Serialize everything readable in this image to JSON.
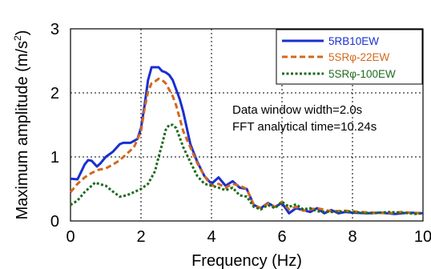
{
  "chart_data": {
    "type": "line",
    "xlabel": "Frequency (Hz)",
    "ylabel": "Maximum amplitude (m/s",
    "ylabel_sup": "2",
    "ylabel_close": ")",
    "xlim": [
      0,
      10
    ],
    "ylim": [
      0,
      3
    ],
    "xticks": [
      "0",
      "2",
      "4",
      "6",
      "8",
      "10"
    ],
    "yticks": [
      "0",
      "1",
      "2",
      "3"
    ],
    "grid": "dotted",
    "legend_position": "top-right",
    "annotations": [
      "Data window width=2.0s",
      "FFT analytical time=10.24s"
    ],
    "series": [
      {
        "name": "5RB10EW",
        "color": "#1a2fd0",
        "style": "solid",
        "x": [
          0.0,
          0.2,
          0.4,
          0.5,
          0.6,
          0.75,
          0.85,
          1.0,
          1.2,
          1.4,
          1.5,
          1.7,
          1.9,
          2.0,
          2.1,
          2.2,
          2.3,
          2.4,
          2.5,
          2.6,
          2.7,
          2.8,
          2.9,
          3.0,
          3.1,
          3.2,
          3.3,
          3.4,
          3.6,
          3.8,
          4.0,
          4.2,
          4.4,
          4.6,
          4.8,
          5.0,
          5.2,
          5.4,
          5.6,
          5.8,
          6.0,
          6.2,
          6.4,
          6.6,
          6.8,
          7.0,
          7.2,
          7.4,
          7.6,
          7.8,
          8.0,
          8.4,
          8.8,
          9.2,
          9.6,
          10.0
        ],
        "values": [
          0.66,
          0.65,
          0.88,
          0.95,
          0.94,
          0.85,
          0.9,
          1.0,
          1.08,
          1.2,
          1.22,
          1.22,
          1.28,
          1.45,
          1.8,
          2.2,
          2.4,
          2.4,
          2.4,
          2.34,
          2.32,
          2.28,
          2.2,
          2.05,
          1.9,
          1.7,
          1.45,
          1.2,
          0.92,
          0.7,
          0.58,
          0.68,
          0.55,
          0.62,
          0.52,
          0.5,
          0.25,
          0.2,
          0.28,
          0.22,
          0.28,
          0.12,
          0.2,
          0.17,
          0.14,
          0.2,
          0.12,
          0.17,
          0.12,
          0.14,
          0.13,
          0.12,
          0.13,
          0.11,
          0.13,
          0.12
        ]
      },
      {
        "name": "5SRφ-22EW",
        "color": "#d2691e",
        "style": "dashed",
        "x": [
          0.0,
          0.2,
          0.4,
          0.6,
          0.8,
          1.0,
          1.2,
          1.4,
          1.6,
          1.8,
          2.0,
          2.1,
          2.2,
          2.3,
          2.4,
          2.5,
          2.6,
          2.7,
          2.8,
          2.9,
          3.0,
          3.1,
          3.2,
          3.4,
          3.6,
          3.8,
          4.0,
          4.2,
          4.4,
          4.6,
          4.8,
          5.0,
          5.2,
          5.4,
          5.6,
          5.8,
          6.0,
          6.2,
          6.4,
          6.6,
          6.8,
          7.0,
          7.4,
          7.8,
          8.2,
          8.6,
          9.0,
          9.4,
          9.8,
          10.0
        ],
        "values": [
          0.45,
          0.58,
          0.68,
          0.75,
          0.8,
          0.82,
          0.88,
          0.95,
          1.05,
          1.15,
          1.4,
          1.75,
          2.02,
          2.15,
          2.18,
          2.22,
          2.2,
          2.15,
          2.05,
          1.95,
          1.8,
          1.6,
          1.4,
          1.15,
          0.9,
          0.7,
          0.55,
          0.58,
          0.52,
          0.58,
          0.55,
          0.5,
          0.25,
          0.2,
          0.27,
          0.22,
          0.3,
          0.18,
          0.22,
          0.16,
          0.18,
          0.2,
          0.15,
          0.16,
          0.14,
          0.13,
          0.12,
          0.14,
          0.12,
          0.13
        ]
      },
      {
        "name": "5SRφ-100EW",
        "color": "#1f6b1f",
        "style": "dotted",
        "x": [
          0.0,
          0.2,
          0.4,
          0.6,
          0.7,
          0.8,
          1.0,
          1.2,
          1.4,
          1.6,
          1.8,
          2.0,
          2.2,
          2.4,
          2.5,
          2.6,
          2.7,
          2.8,
          2.9,
          3.0,
          3.1,
          3.2,
          3.4,
          3.6,
          3.8,
          4.0,
          4.2,
          4.4,
          4.6,
          4.8,
          5.0,
          5.2,
          5.4,
          5.6,
          5.8,
          6.0,
          6.2,
          6.4,
          6.6,
          6.8,
          7.0,
          7.4,
          7.8,
          8.2,
          8.6,
          9.0,
          9.4,
          9.8,
          10.0
        ],
        "values": [
          0.25,
          0.32,
          0.45,
          0.55,
          0.6,
          0.58,
          0.55,
          0.46,
          0.38,
          0.4,
          0.45,
          0.5,
          0.58,
          0.78,
          1.0,
          1.2,
          1.42,
          1.5,
          1.5,
          1.45,
          1.3,
          1.15,
          0.92,
          0.7,
          0.58,
          0.55,
          0.52,
          0.48,
          0.52,
          0.4,
          0.38,
          0.22,
          0.18,
          0.25,
          0.2,
          0.3,
          0.22,
          0.26,
          0.18,
          0.2,
          0.15,
          0.14,
          0.15,
          0.13,
          0.12,
          0.14,
          0.13,
          0.11,
          0.12
        ]
      }
    ]
  }
}
